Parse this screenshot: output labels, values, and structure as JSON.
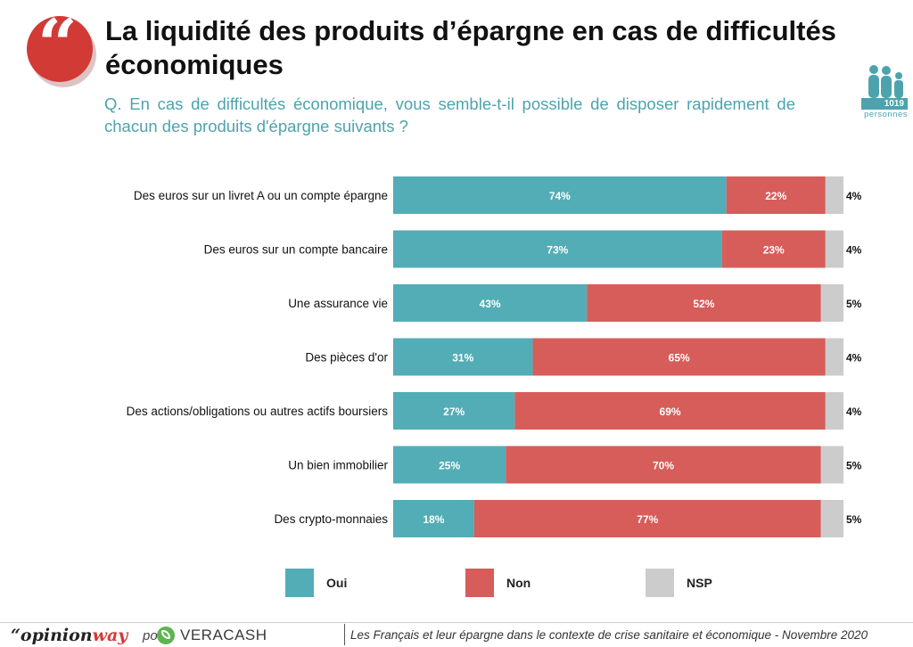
{
  "header": {
    "title": "La liquidité des produits d’épargne en cas de difficultés économiques",
    "question": "Q. En cas de difficultés économique, vous semble-t-il possible de disposer rapidement de chacun des produits d'épargne suivants ?",
    "sample_count": "1019",
    "sample_unit": "personnes"
  },
  "chart_data": {
    "type": "bar",
    "orientation": "horizontal",
    "stacked": true,
    "categories": [
      "Des euros sur un livret A ou un compte épargne",
      "Des euros sur un compte bancaire",
      "Une assurance vie",
      "Des pièces d'or",
      "Des actions/obligations ou autres actifs boursiers",
      "Un bien immobilier",
      "Des crypto-monnaies"
    ],
    "series": [
      {
        "name": "Oui",
        "color": "#52adb6",
        "values": [
          74,
          73,
          43,
          31,
          27,
          25,
          18
        ]
      },
      {
        "name": "Non",
        "color": "#d65d5a",
        "values": [
          22,
          23,
          52,
          65,
          69,
          70,
          77
        ]
      },
      {
        "name": "NSP",
        "color": "#cccccc",
        "values": [
          4,
          4,
          5,
          4,
          4,
          5,
          5
        ]
      }
    ],
    "value_suffix": "%",
    "legend_position": "bottom",
    "grid": false
  },
  "footer": {
    "brand_prefix": "“opinion",
    "brand_suffix": "way",
    "pour": "pour",
    "partner": "VERACASH",
    "caption": "Les Français et leur épargne dans le contexte de crise sanitaire et économique - Novembre 2020"
  }
}
